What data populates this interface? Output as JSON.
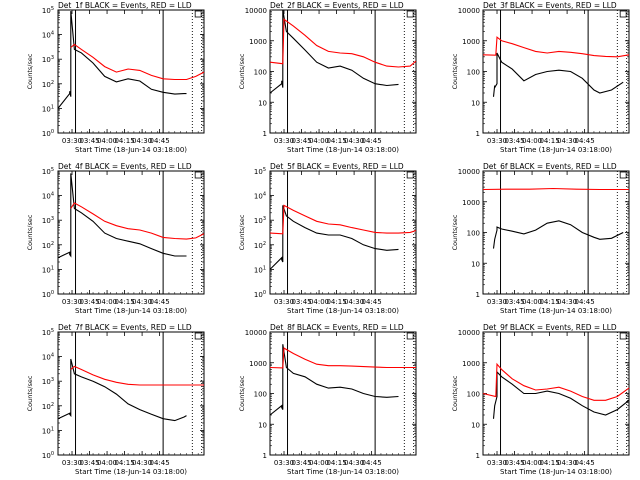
{
  "figure": {
    "x_ticks": [
      "03:30",
      "03:45",
      "04:00",
      "04:15",
      "04:30",
      "04:45"
    ],
    "ylabel": "Counts/sec",
    "xlabel": "Start Time (18-Jun-14 03:18:00)",
    "colors": {
      "events": "#000000",
      "lld": "#ff0000",
      "axes": "#000000"
    }
  },
  "chart_data": [
    {
      "type": "line",
      "title": "Det_1f BLACK = Events, RED = LLD",
      "xlabel": "Start Time (18-Jun-14 03:18:00)",
      "ylabel": "Counts/sec",
      "xlim": [
        0,
        125
      ],
      "scale": "log",
      "y_format": "exp",
      "ylim": [
        1,
        100000
      ],
      "y_ticks": [
        {
          "v": 1,
          "b": "10",
          "e": "0"
        },
        {
          "v": 10,
          "b": "10",
          "e": "1"
        },
        {
          "v": 100,
          "b": "10",
          "e": "2"
        },
        {
          "v": 1000,
          "b": "10",
          "e": "3"
        },
        {
          "v": 10000,
          "b": "10",
          "e": "4"
        },
        {
          "v": 100000,
          "b": "10",
          "e": "5"
        }
      ],
      "series": [
        {
          "color": "#000000",
          "x": [
            0,
            10,
            10,
            11,
            11,
            14,
            20,
            30,
            40,
            50,
            60,
            70,
            80,
            90,
            100,
            108,
            110
          ],
          "y": [
            10,
            40,
            50,
            30,
            90000,
            2500,
            1800,
            700,
            200,
            120,
            160,
            130,
            60,
            45,
            38,
            40,
            40
          ]
        },
        {
          "color": "#ff0000",
          "x": [
            11,
            14,
            20,
            30,
            40,
            50,
            60,
            70,
            80,
            90,
            100,
            110,
            118,
            125
          ],
          "y": [
            3000,
            4000,
            2500,
            1200,
            500,
            300,
            400,
            350,
            220,
            160,
            150,
            150,
            200,
            300
          ]
        }
      ],
      "vlines_solid": [
        15,
        90
      ],
      "vlines_dotted": [
        115,
        123
      ],
      "box_x": 120
    },
    {
      "type": "line",
      "title": "Det_2f BLACK = Events, RED = LLD",
      "xlabel": "Start Time (18-Jun-14 03:18:00)",
      "ylabel": "Counts/sec",
      "xlim": [
        0,
        125
      ],
      "scale": "log",
      "y_format": "num",
      "ylim": [
        1,
        10000
      ],
      "y_ticks": [
        {
          "v": 1,
          "t": "1"
        },
        {
          "v": 10,
          "t": "10"
        },
        {
          "v": 100,
          "t": "100"
        },
        {
          "v": 1000,
          "t": "1000"
        },
        {
          "v": 10000,
          "t": "10000"
        }
      ],
      "series": [
        {
          "color": "#000000",
          "x": [
            0,
            10,
            10,
            11,
            11,
            14,
            20,
            30,
            40,
            50,
            60,
            70,
            80,
            90,
            100,
            110
          ],
          "y": [
            20,
            40,
            50,
            30,
            10000,
            2000,
            1200,
            500,
            200,
            130,
            150,
            110,
            60,
            40,
            35,
            38
          ]
        },
        {
          "color": "#ff0000",
          "x": [
            0,
            11,
            12,
            20,
            30,
            40,
            50,
            60,
            70,
            80,
            90,
            100,
            110,
            120,
            125
          ],
          "y": [
            200,
            180,
            5000,
            3000,
            1500,
            700,
            450,
            400,
            380,
            300,
            200,
            150,
            140,
            150,
            220
          ]
        }
      ],
      "vlines_solid": [
        15,
        90
      ],
      "vlines_dotted": [
        115,
        123
      ],
      "box_x": 120
    },
    {
      "type": "line",
      "title": "Det_3f BLACK = Events, RED = LLD",
      "xlabel": "Start Time (18-Jun-14 03:18:00)",
      "ylabel": "Counts/sec",
      "xlim": [
        0,
        125
      ],
      "scale": "log",
      "y_format": "num",
      "ylim": [
        1,
        10000
      ],
      "y_ticks": [
        {
          "v": 1,
          "t": "1"
        },
        {
          "v": 10,
          "t": "10"
        },
        {
          "v": 100,
          "t": "100"
        },
        {
          "v": 1000,
          "t": "1000"
        },
        {
          "v": 10000,
          "t": "10000"
        }
      ],
      "series": [
        {
          "color": "#000000",
          "x": [
            9,
            10,
            10,
            12,
            12,
            16,
            25,
            35,
            45,
            55,
            65,
            75,
            85,
            95,
            100,
            110,
            120
          ],
          "y": [
            15,
            35,
            30,
            40,
            400,
            200,
            120,
            50,
            80,
            100,
            110,
            100,
            60,
            25,
            20,
            25,
            45
          ]
        },
        {
          "color": "#ff0000",
          "x": [
            0,
            11,
            12,
            16,
            25,
            35,
            45,
            55,
            65,
            75,
            85,
            95,
            105,
            115,
            125
          ],
          "y": [
            350,
            340,
            1300,
            1000,
            800,
            600,
            450,
            400,
            450,
            420,
            380,
            330,
            310,
            300,
            350
          ]
        }
      ],
      "vlines_solid": [
        15,
        90
      ],
      "vlines_dotted": [
        115,
        123
      ],
      "box_x": 120
    },
    {
      "type": "line",
      "title": "Det_4f BLACK = Events, RED = LLD",
      "xlabel": "Start Time (18-Jun-14 03:18:00)",
      "ylabel": "Counts/sec",
      "xlim": [
        0,
        125
      ],
      "scale": "log",
      "y_format": "exp",
      "ylim": [
        1,
        100000
      ],
      "y_ticks": [
        {
          "v": 1,
          "b": "10",
          "e": "0"
        },
        {
          "v": 10,
          "b": "10",
          "e": "1"
        },
        {
          "v": 100,
          "b": "10",
          "e": "2"
        },
        {
          "v": 1000,
          "b": "10",
          "e": "3"
        },
        {
          "v": 10000,
          "b": "10",
          "e": "4"
        },
        {
          "v": 100000,
          "b": "10",
          "e": "5"
        }
      ],
      "series": [
        {
          "color": "#000000",
          "x": [
            0,
            10,
            10,
            11,
            11,
            14,
            20,
            30,
            40,
            50,
            60,
            70,
            80,
            90,
            100,
            110
          ],
          "y": [
            30,
            50,
            40,
            35,
            80000,
            3000,
            2000,
            900,
            300,
            180,
            140,
            110,
            70,
            45,
            35,
            35
          ]
        },
        {
          "color": "#ff0000",
          "x": [
            11,
            14,
            20,
            30,
            40,
            50,
            60,
            70,
            80,
            90,
            100,
            110,
            118,
            125
          ],
          "y": [
            3000,
            5000,
            3500,
            1800,
            900,
            600,
            450,
            400,
            300,
            200,
            180,
            170,
            190,
            280
          ]
        }
      ],
      "vlines_solid": [
        15,
        90
      ],
      "vlines_dotted": [
        115,
        123
      ],
      "box_x": 120
    },
    {
      "type": "line",
      "title": "Det_5f BLACK = Events, RED = LLD",
      "xlabel": "Start Time (18-Jun-14 03:18:00)",
      "ylabel": "Counts/sec",
      "xlim": [
        0,
        125
      ],
      "scale": "log",
      "y_format": "exp",
      "ylim": [
        1,
        100000
      ],
      "y_ticks": [
        {
          "v": 1,
          "b": "10",
          "e": "0"
        },
        {
          "v": 10,
          "b": "10",
          "e": "1"
        },
        {
          "v": 100,
          "b": "10",
          "e": "2"
        },
        {
          "v": 1000,
          "b": "10",
          "e": "3"
        },
        {
          "v": 10000,
          "b": "10",
          "e": "4"
        },
        {
          "v": 100000,
          "b": "10",
          "e": "5"
        }
      ],
      "series": [
        {
          "color": "#000000",
          "x": [
            0,
            10,
            10,
            11,
            11,
            14,
            20,
            30,
            40,
            50,
            60,
            70,
            80,
            90,
            100,
            110
          ],
          "y": [
            10,
            30,
            25,
            20,
            4000,
            1500,
            900,
            500,
            300,
            250,
            250,
            180,
            100,
            70,
            60,
            65
          ]
        },
        {
          "color": "#ff0000",
          "x": [
            0,
            11,
            12,
            20,
            30,
            40,
            50,
            60,
            70,
            80,
            90,
            100,
            110,
            120,
            125
          ],
          "y": [
            300,
            280,
            4000,
            2500,
            1500,
            900,
            700,
            650,
            500,
            400,
            320,
            300,
            300,
            320,
            380
          ]
        }
      ],
      "vlines_solid": [
        15,
        90
      ],
      "vlines_dotted": [
        115,
        123
      ],
      "box_x": 120
    },
    {
      "type": "line",
      "title": "Det_6f BLACK = Events, RED = LLD",
      "xlabel": "Start Time (18-Jun-14 03:18:00)",
      "ylabel": "Counts/sec",
      "xlim": [
        0,
        125
      ],
      "scale": "log",
      "y_format": "num",
      "ylim": [
        1,
        10000
      ],
      "y_ticks": [
        {
          "v": 1,
          "t": "1"
        },
        {
          "v": 10,
          "t": "10"
        },
        {
          "v": 100,
          "t": "100"
        },
        {
          "v": 1000,
          "t": "1000"
        },
        {
          "v": 10000,
          "t": "10000"
        }
      ],
      "series": [
        {
          "color": "#000000",
          "x": [
            9,
            10,
            12,
            12,
            16,
            25,
            35,
            45,
            55,
            65,
            75,
            85,
            95,
            100,
            110,
            120
          ],
          "y": [
            30,
            60,
            120,
            150,
            130,
            110,
            90,
            120,
            200,
            240,
            180,
            100,
            70,
            60,
            65,
            100
          ]
        },
        {
          "color": "#ff0000",
          "x": [
            0,
            20,
            40,
            60,
            80,
            100,
            125
          ],
          "y": [
            2500,
            2550,
            2550,
            2700,
            2550,
            2500,
            2500
          ]
        }
      ],
      "vlines_solid": [
        15,
        90
      ],
      "vlines_dotted": [
        115,
        123
      ],
      "box_x": 120
    },
    {
      "type": "line",
      "title": "Det_7f BLACK = Events, RED = LLD",
      "xlabel": "Start Time (18-Jun-14 03:18:00)",
      "ylabel": "Counts/sec",
      "xlim": [
        0,
        125
      ],
      "scale": "log",
      "y_format": "exp",
      "ylim": [
        1,
        100000
      ],
      "y_ticks": [
        {
          "v": 1,
          "b": "10",
          "e": "0"
        },
        {
          "v": 10,
          "b": "10",
          "e": "1"
        },
        {
          "v": 100,
          "b": "10",
          "e": "2"
        },
        {
          "v": 1000,
          "b": "10",
          "e": "3"
        },
        {
          "v": 10000,
          "b": "10",
          "e": "4"
        },
        {
          "v": 100000,
          "b": "10",
          "e": "5"
        }
      ],
      "series": [
        {
          "color": "#000000",
          "x": [
            0,
            10,
            10,
            11,
            11,
            14,
            20,
            30,
            40,
            50,
            60,
            70,
            80,
            90,
            100,
            108,
            110
          ],
          "y": [
            30,
            50,
            45,
            40,
            8000,
            2000,
            1500,
            1000,
            600,
            300,
            120,
            70,
            45,
            30,
            25,
            35,
            40
          ]
        },
        {
          "color": "#ff0000",
          "x": [
            11,
            14,
            20,
            30,
            40,
            50,
            60,
            70,
            80,
            90,
            100,
            110,
            125
          ],
          "y": [
            3000,
            4000,
            3000,
            1800,
            1200,
            900,
            750,
            700,
            700,
            700,
            700,
            700,
            700
          ]
        }
      ],
      "vlines_solid": [
        15,
        90
      ],
      "vlines_dotted": [
        115,
        123
      ],
      "box_x": 120
    },
    {
      "type": "line",
      "title": "Det_8f BLACK = Events, RED = LLD",
      "xlabel": "Start Time (18-Jun-14 03:18:00)",
      "ylabel": "Counts/sec",
      "xlim": [
        0,
        125
      ],
      "scale": "log",
      "y_format": "num",
      "ylim": [
        1,
        10000
      ],
      "y_ticks": [
        {
          "v": 1,
          "t": "1"
        },
        {
          "v": 10,
          "t": "10"
        },
        {
          "v": 100,
          "t": "100"
        },
        {
          "v": 1000,
          "t": "1000"
        },
        {
          "v": 10000,
          "t": "10000"
        }
      ],
      "series": [
        {
          "color": "#000000",
          "x": [
            0,
            10,
            10,
            11,
            11,
            14,
            20,
            30,
            40,
            50,
            60,
            70,
            80,
            90,
            100,
            110
          ],
          "y": [
            20,
            40,
            35,
            30,
            4000,
            700,
            450,
            350,
            200,
            150,
            160,
            140,
            100,
            80,
            75,
            80
          ]
        },
        {
          "color": "#ff0000",
          "x": [
            0,
            11,
            12,
            20,
            30,
            40,
            50,
            60,
            70,
            80,
            90,
            100,
            110,
            125
          ],
          "y": [
            700,
            680,
            3000,
            2000,
            1300,
            900,
            800,
            800,
            780,
            750,
            720,
            700,
            700,
            700
          ]
        }
      ],
      "vlines_solid": [
        15,
        90
      ],
      "vlines_dotted": [
        115,
        123
      ],
      "box_x": 120
    },
    {
      "type": "line",
      "title": "Det_9f BLACK = Events, RED = LLD",
      "xlabel": "Start Time (18-Jun-14 03:18:00)",
      "ylabel": "Counts/sec",
      "xlim": [
        0,
        125
      ],
      "scale": "log",
      "y_format": "num",
      "ylim": [
        1,
        10000
      ],
      "y_ticks": [
        {
          "v": 1,
          "t": "1"
        },
        {
          "v": 10,
          "t": "10"
        },
        {
          "v": 100,
          "t": "100"
        },
        {
          "v": 1000,
          "t": "1000"
        },
        {
          "v": 10000,
          "t": "10000"
        }
      ],
      "series": [
        {
          "color": "#000000",
          "x": [
            9,
            10,
            12,
            12,
            16,
            25,
            35,
            45,
            55,
            65,
            75,
            85,
            95,
            105,
            115,
            125
          ],
          "y": [
            15,
            40,
            80,
            500,
            350,
            200,
            100,
            100,
            120,
            100,
            70,
            40,
            25,
            20,
            30,
            60
          ]
        },
        {
          "color": "#ff0000",
          "x": [
            0,
            11,
            12,
            16,
            25,
            35,
            45,
            55,
            65,
            75,
            85,
            95,
            105,
            115,
            125
          ],
          "y": [
            100,
            80,
            900,
            600,
            300,
            180,
            130,
            140,
            160,
            120,
            80,
            60,
            60,
            80,
            150
          ]
        }
      ],
      "vlines_solid": [
        15,
        90
      ],
      "vlines_dotted": [
        115,
        123
      ],
      "box_x": 120
    }
  ]
}
